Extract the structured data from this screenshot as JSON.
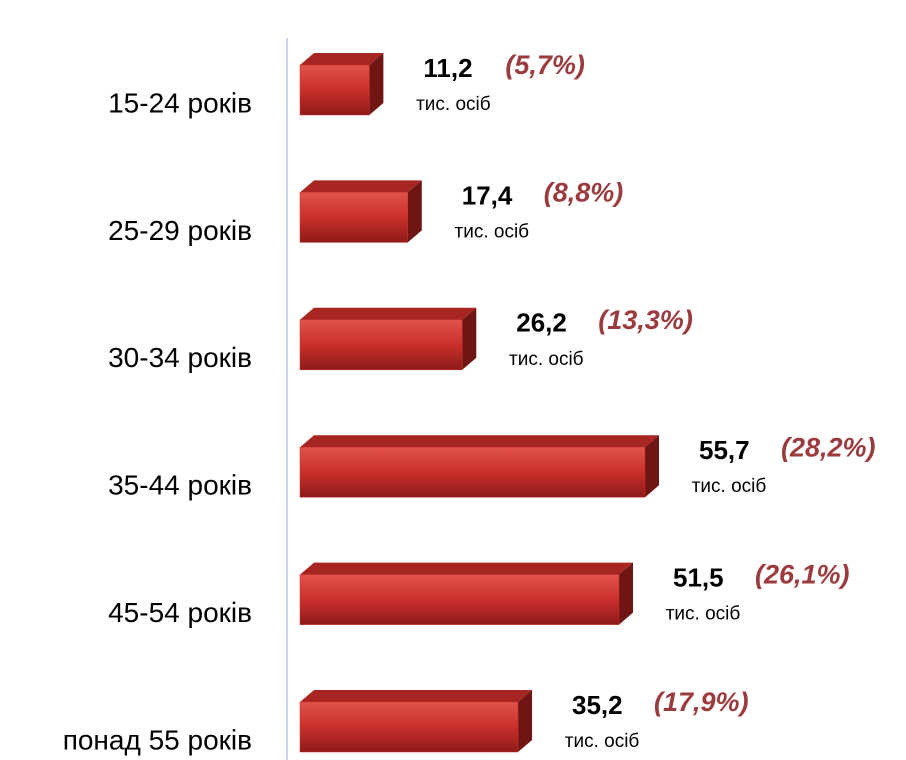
{
  "chart_data": {
    "type": "bar",
    "orientation": "horizontal",
    "categories": [
      "15-24 років",
      "25-29 років",
      "30-34 років",
      "35-44 років",
      "45-54 років",
      "понад 55 років"
    ],
    "values": [
      11.2,
      17.4,
      26.2,
      55.7,
      51.5,
      35.2
    ],
    "value_labels": [
      "11,2",
      "17,4",
      "26,2",
      "55,7",
      "51,5",
      "35,2"
    ],
    "unit": "тис. осіб",
    "shares": [
      5.7,
      8.8,
      13.3,
      28.2,
      26.1,
      17.9
    ],
    "share_labels": [
      "(5,7%)",
      "(8,8%)",
      "(13,3%)",
      "(28,2%)",
      "(26,1%)",
      "(17,9%)"
    ],
    "color": "#c9302c",
    "share_color": "#9b3b3e"
  }
}
